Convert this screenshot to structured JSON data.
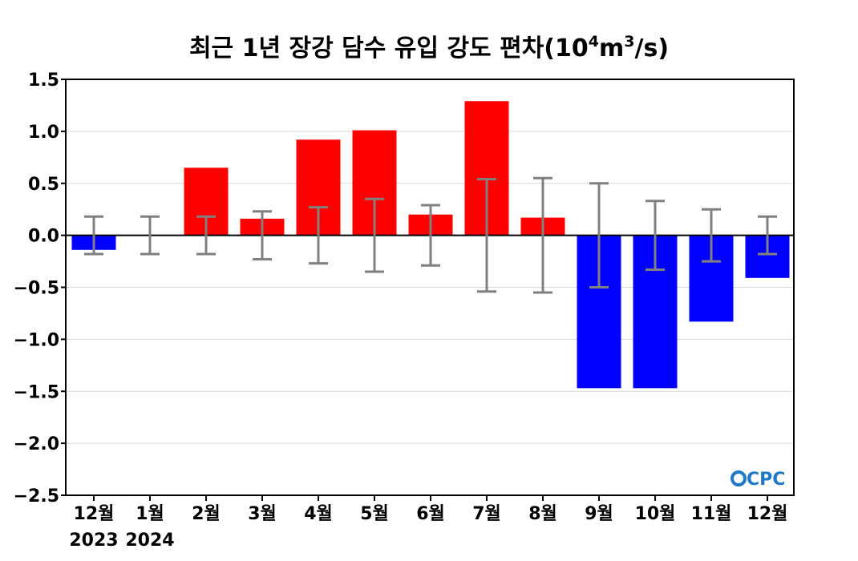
{
  "chart_data": {
    "type": "bar",
    "title_main": "최근 1년 장강 담수 유입 강도 편차(10",
    "title_sup1": "4",
    "title_mid": "m",
    "title_sup2": "3",
    "title_end": "/s)",
    "categories": [
      "12월",
      "1월",
      "2월",
      "3월",
      "4월",
      "5월",
      "6월",
      "7월",
      "8월",
      "9월",
      "10월",
      "11월",
      "12월"
    ],
    "year_labels": [
      "2023",
      "2024",
      "",
      "",
      "",
      "",
      "",
      "",
      "",
      "",
      "",
      "",
      ""
    ],
    "values": [
      -0.14,
      0.0,
      0.65,
      0.16,
      0.92,
      1.01,
      0.2,
      1.29,
      0.17,
      -1.47,
      -1.47,
      -0.83,
      -0.41
    ],
    "error_bars": [
      0.18,
      0.18,
      0.18,
      0.23,
      0.27,
      0.35,
      0.29,
      0.54,
      0.55,
      0.5,
      0.33,
      0.25,
      0.18
    ],
    "ylim": [
      -2.5,
      1.5
    ],
    "yticks": [
      1.5,
      1.0,
      0.5,
      0.0,
      -0.5,
      -1.0,
      -1.5,
      -2.0,
      -2.5
    ],
    "ytick_labels": [
      "1.5",
      "1.0",
      "0.5",
      "0.0",
      "−0.5",
      "−1.0",
      "−1.5",
      "−2.0",
      "−2.5"
    ],
    "grid": true,
    "colors": {
      "positive": "#ff0000",
      "negative": "#0000ff",
      "error_bar": "#808080",
      "grid": "#d9d9d9"
    }
  },
  "logo": {
    "text": "CPC"
  }
}
